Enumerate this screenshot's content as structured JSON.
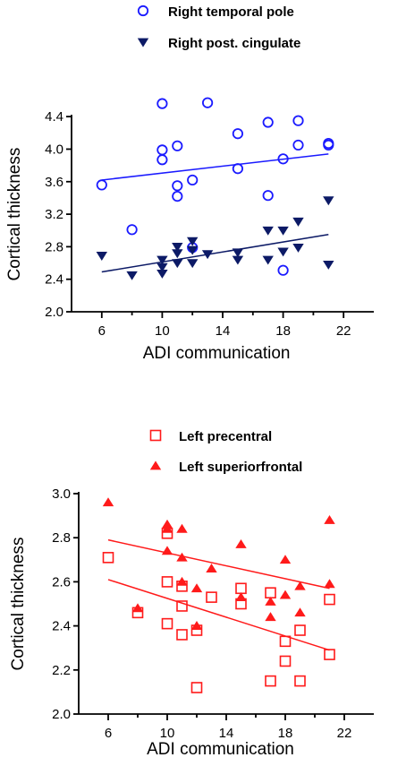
{
  "chart_data": [
    {
      "type": "scatter",
      "title": "",
      "xlabel": "ADI communication",
      "ylabel": "Cortical thickness",
      "xlim": [
        4,
        24
      ],
      "ylim": [
        2.0,
        4.6
      ],
      "xticks": [
        6,
        10,
        14,
        18,
        22
      ],
      "yticks": [
        2.0,
        2.4,
        2.8,
        3.2,
        3.6,
        4.0,
        4.4
      ],
      "legend_position": "top-center",
      "grid": false,
      "series": [
        {
          "name": "Right temporal pole",
          "marker": "circle-open",
          "color": "#1a1aff",
          "x": [
            6,
            8,
            10,
            10,
            10,
            11,
            11,
            11,
            12,
            12,
            13,
            15,
            15,
            17,
            17,
            18,
            18,
            19,
            19,
            21,
            21
          ],
          "y": [
            3.56,
            3.01,
            4.56,
            3.99,
            3.87,
            4.04,
            3.55,
            3.42,
            3.62,
            2.79,
            4.57,
            4.19,
            3.76,
            4.33,
            3.43,
            3.88,
            2.51,
            4.35,
            4.05,
            4.07,
            4.05
          ],
          "trend_line": [
            [
              6,
              3.62
            ],
            [
              21,
              3.94
            ]
          ]
        },
        {
          "name": "Right post. cingulate",
          "marker": "triangle-down-filled",
          "color": "#0c1a66",
          "x": [
            6,
            8,
            10,
            10,
            10,
            11,
            11,
            11,
            12,
            12,
            12,
            13,
            15,
            15,
            17,
            17,
            18,
            18,
            19,
            19,
            21,
            21
          ],
          "y": [
            2.69,
            2.45,
            2.64,
            2.55,
            2.47,
            2.8,
            2.72,
            2.6,
            2.87,
            2.76,
            2.6,
            2.71,
            2.73,
            2.64,
            3.0,
            2.64,
            3.0,
            2.74,
            3.11,
            2.79,
            3.37,
            2.58
          ],
          "trend_line": [
            [
              6,
              2.49
            ],
            [
              21,
              2.95
            ]
          ]
        }
      ]
    },
    {
      "type": "scatter",
      "title": "",
      "xlabel": "ADI communication",
      "ylabel": "Cortical thickness",
      "xlim": [
        4,
        24
      ],
      "ylim": [
        2.0,
        3.0
      ],
      "xticks": [
        6,
        10,
        14,
        18,
        22
      ],
      "yticks": [
        2.0,
        2.2,
        2.4,
        2.6,
        2.8,
        3.0
      ],
      "legend_position": "top-center",
      "grid": false,
      "series": [
        {
          "name": "Left precentral",
          "marker": "square-open",
          "color": "#ff1a1a",
          "x": [
            6,
            8,
            10,
            10,
            10,
            11,
            11,
            11,
            12,
            12,
            13,
            15,
            15,
            17,
            17,
            18,
            18,
            19,
            19,
            21,
            21
          ],
          "y": [
            2.71,
            2.46,
            2.82,
            2.6,
            2.41,
            2.58,
            2.49,
            2.36,
            2.38,
            2.12,
            2.53,
            2.57,
            2.5,
            2.55,
            2.15,
            2.33,
            2.24,
            2.38,
            2.15,
            2.52,
            2.27
          ],
          "trend_line": [
            [
              6,
              2.61
            ],
            [
              21,
              2.29
            ]
          ]
        },
        {
          "name": "Left superiorfrontal",
          "marker": "triangle-up-filled",
          "color": "#ff1a1a",
          "x": [
            6,
            8,
            10,
            10,
            10,
            11,
            11,
            11,
            12,
            12,
            13,
            15,
            15,
            17,
            17,
            18,
            18,
            19,
            19,
            21,
            21
          ],
          "y": [
            2.96,
            2.48,
            2.86,
            2.84,
            2.74,
            2.84,
            2.71,
            2.6,
            2.57,
            2.4,
            2.66,
            2.77,
            2.53,
            2.51,
            2.44,
            2.7,
            2.54,
            2.58,
            2.46,
            2.88,
            2.59
          ],
          "trend_line": [
            [
              6,
              2.79
            ],
            [
              21,
              2.57
            ]
          ]
        }
      ]
    }
  ]
}
